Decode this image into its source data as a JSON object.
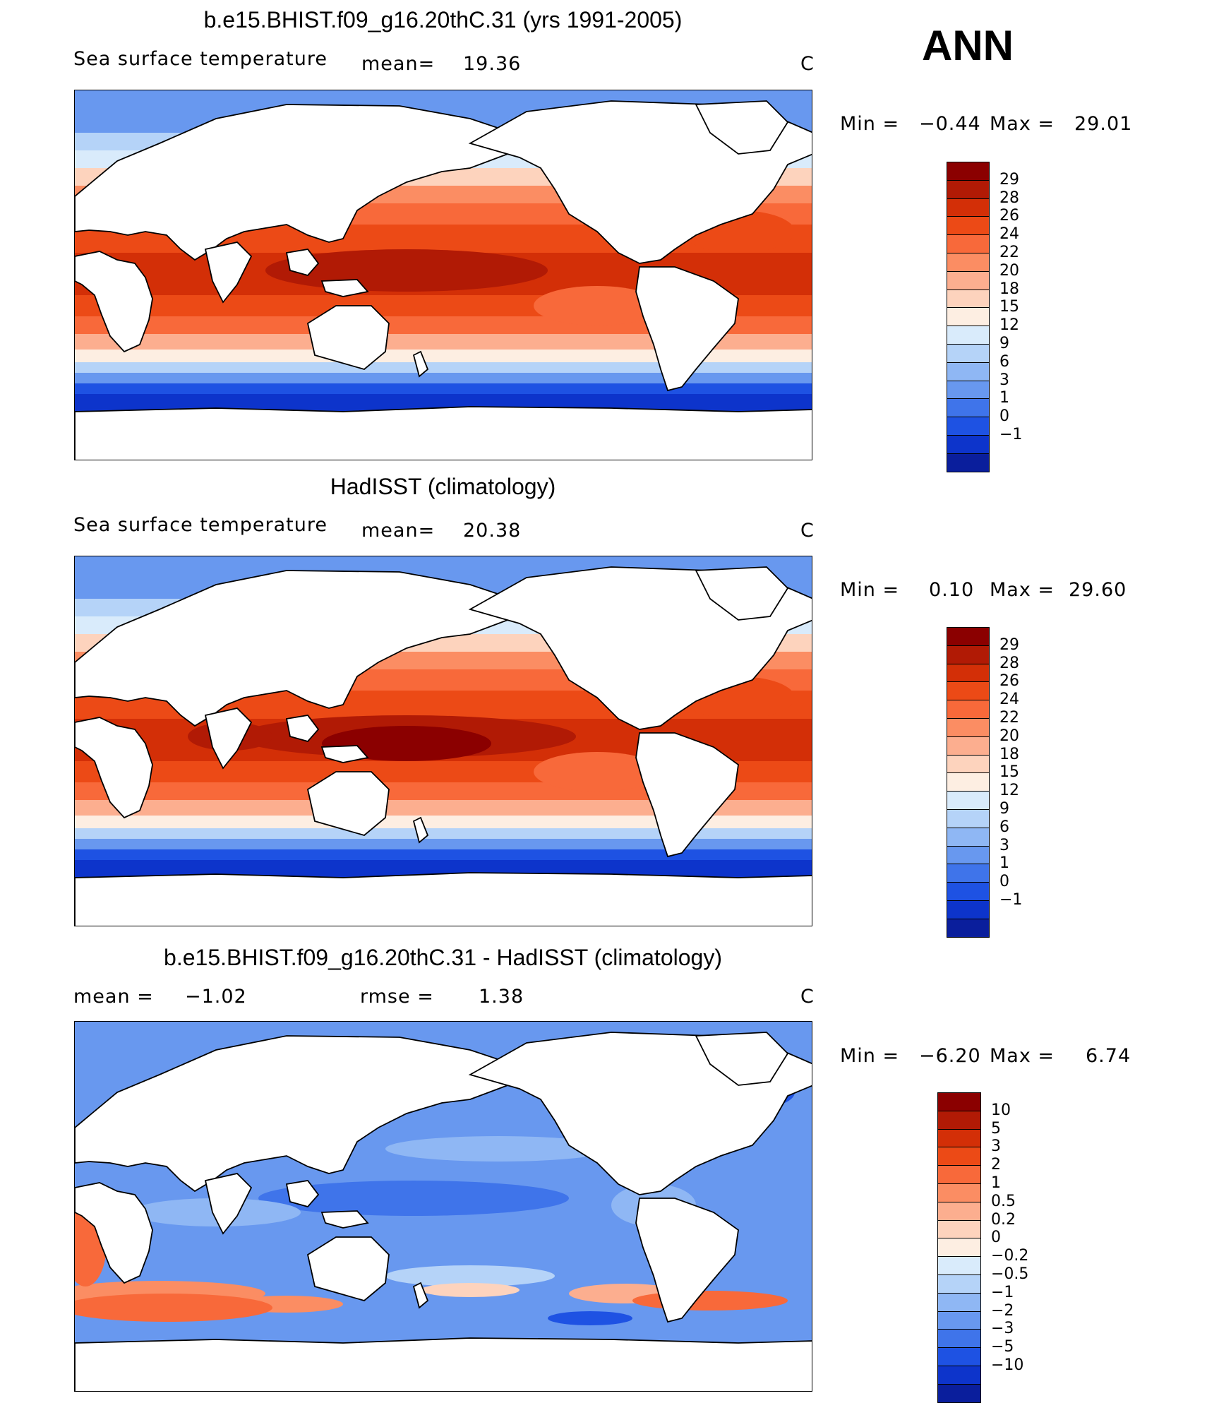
{
  "season": "ANN",
  "panels": [
    {
      "title": "b.e15.BHIST.f09_g16.20thC.31 (yrs 1991-2005)",
      "left_label": "Sea surface temperature",
      "stat1": "mean=",
      "stat1_value": "19.36",
      "stat2": "",
      "stat2_value": "",
      "units": "C",
      "min_label": "Min =",
      "min_value": "−0.44",
      "max_label": "Max =",
      "max_value": "29.01",
      "type": "abs",
      "colorbar": {
        "labels": [
          "29",
          "28",
          "26",
          "24",
          "22",
          "20",
          "18",
          "15",
          "12",
          "9",
          "6",
          "3",
          "1",
          "0",
          "−1"
        ],
        "colors": [
          "#8b0000",
          "#b11a05",
          "#d32f07",
          "#ec4a16",
          "#f8693a",
          "#fb8d63",
          "#fcae8f",
          "#fdd3bd",
          "#fdeee2",
          "#d9ebfb",
          "#b5d3f8",
          "#8fb7f4",
          "#6898ef",
          "#3f74ea",
          "#1e52e3",
          "#0d34cb",
          "#0a1e9c"
        ]
      }
    },
    {
      "title": "HadISST (climatology)",
      "left_label": "Sea surface temperature",
      "stat1": "mean=",
      "stat1_value": "20.38",
      "stat2": "",
      "stat2_value": "",
      "units": "C",
      "min_label": "Min =",
      "min_value": "0.10",
      "max_label": "Max =",
      "max_value": "29.60",
      "type": "abs",
      "colorbar": {
        "labels": [
          "29",
          "28",
          "26",
          "24",
          "22",
          "20",
          "18",
          "15",
          "12",
          "9",
          "6",
          "3",
          "1",
          "0",
          "−1"
        ],
        "colors": [
          "#8b0000",
          "#b11a05",
          "#d32f07",
          "#ec4a16",
          "#f8693a",
          "#fb8d63",
          "#fcae8f",
          "#fdd3bd",
          "#fdeee2",
          "#d9ebfb",
          "#b5d3f8",
          "#8fb7f4",
          "#6898ef",
          "#3f74ea",
          "#1e52e3",
          "#0d34cb",
          "#0a1e9c"
        ]
      }
    },
    {
      "title": "b.e15.BHIST.f09_g16.20thC.31 - HadISST (climatology)",
      "left_label": "mean =",
      "stat1": "",
      "stat1_value": "−1.02",
      "stat2": "rmse =",
      "stat2_value": "1.38",
      "units": "C",
      "min_label": "Min =",
      "min_value": "−6.20",
      "max_label": "Max =",
      "max_value": "6.74",
      "type": "diff",
      "colorbar": {
        "labels": [
          "10",
          "5",
          "3",
          "2",
          "1",
          "0.5",
          "0.2",
          "0",
          "−0.2",
          "−0.5",
          "−1",
          "−2",
          "−3",
          "−5",
          "−10"
        ],
        "colors": [
          "#8b0000",
          "#b11a05",
          "#d32f07",
          "#ec4a16",
          "#f8693a",
          "#fb8d63",
          "#fcae8f",
          "#fdd3bd",
          "#fdeee2",
          "#d9ebfb",
          "#b5d3f8",
          "#8fb7f4",
          "#6898ef",
          "#3f74ea",
          "#1e52e3",
          "#0d34cb",
          "#0a1e9c"
        ]
      }
    }
  ]
}
